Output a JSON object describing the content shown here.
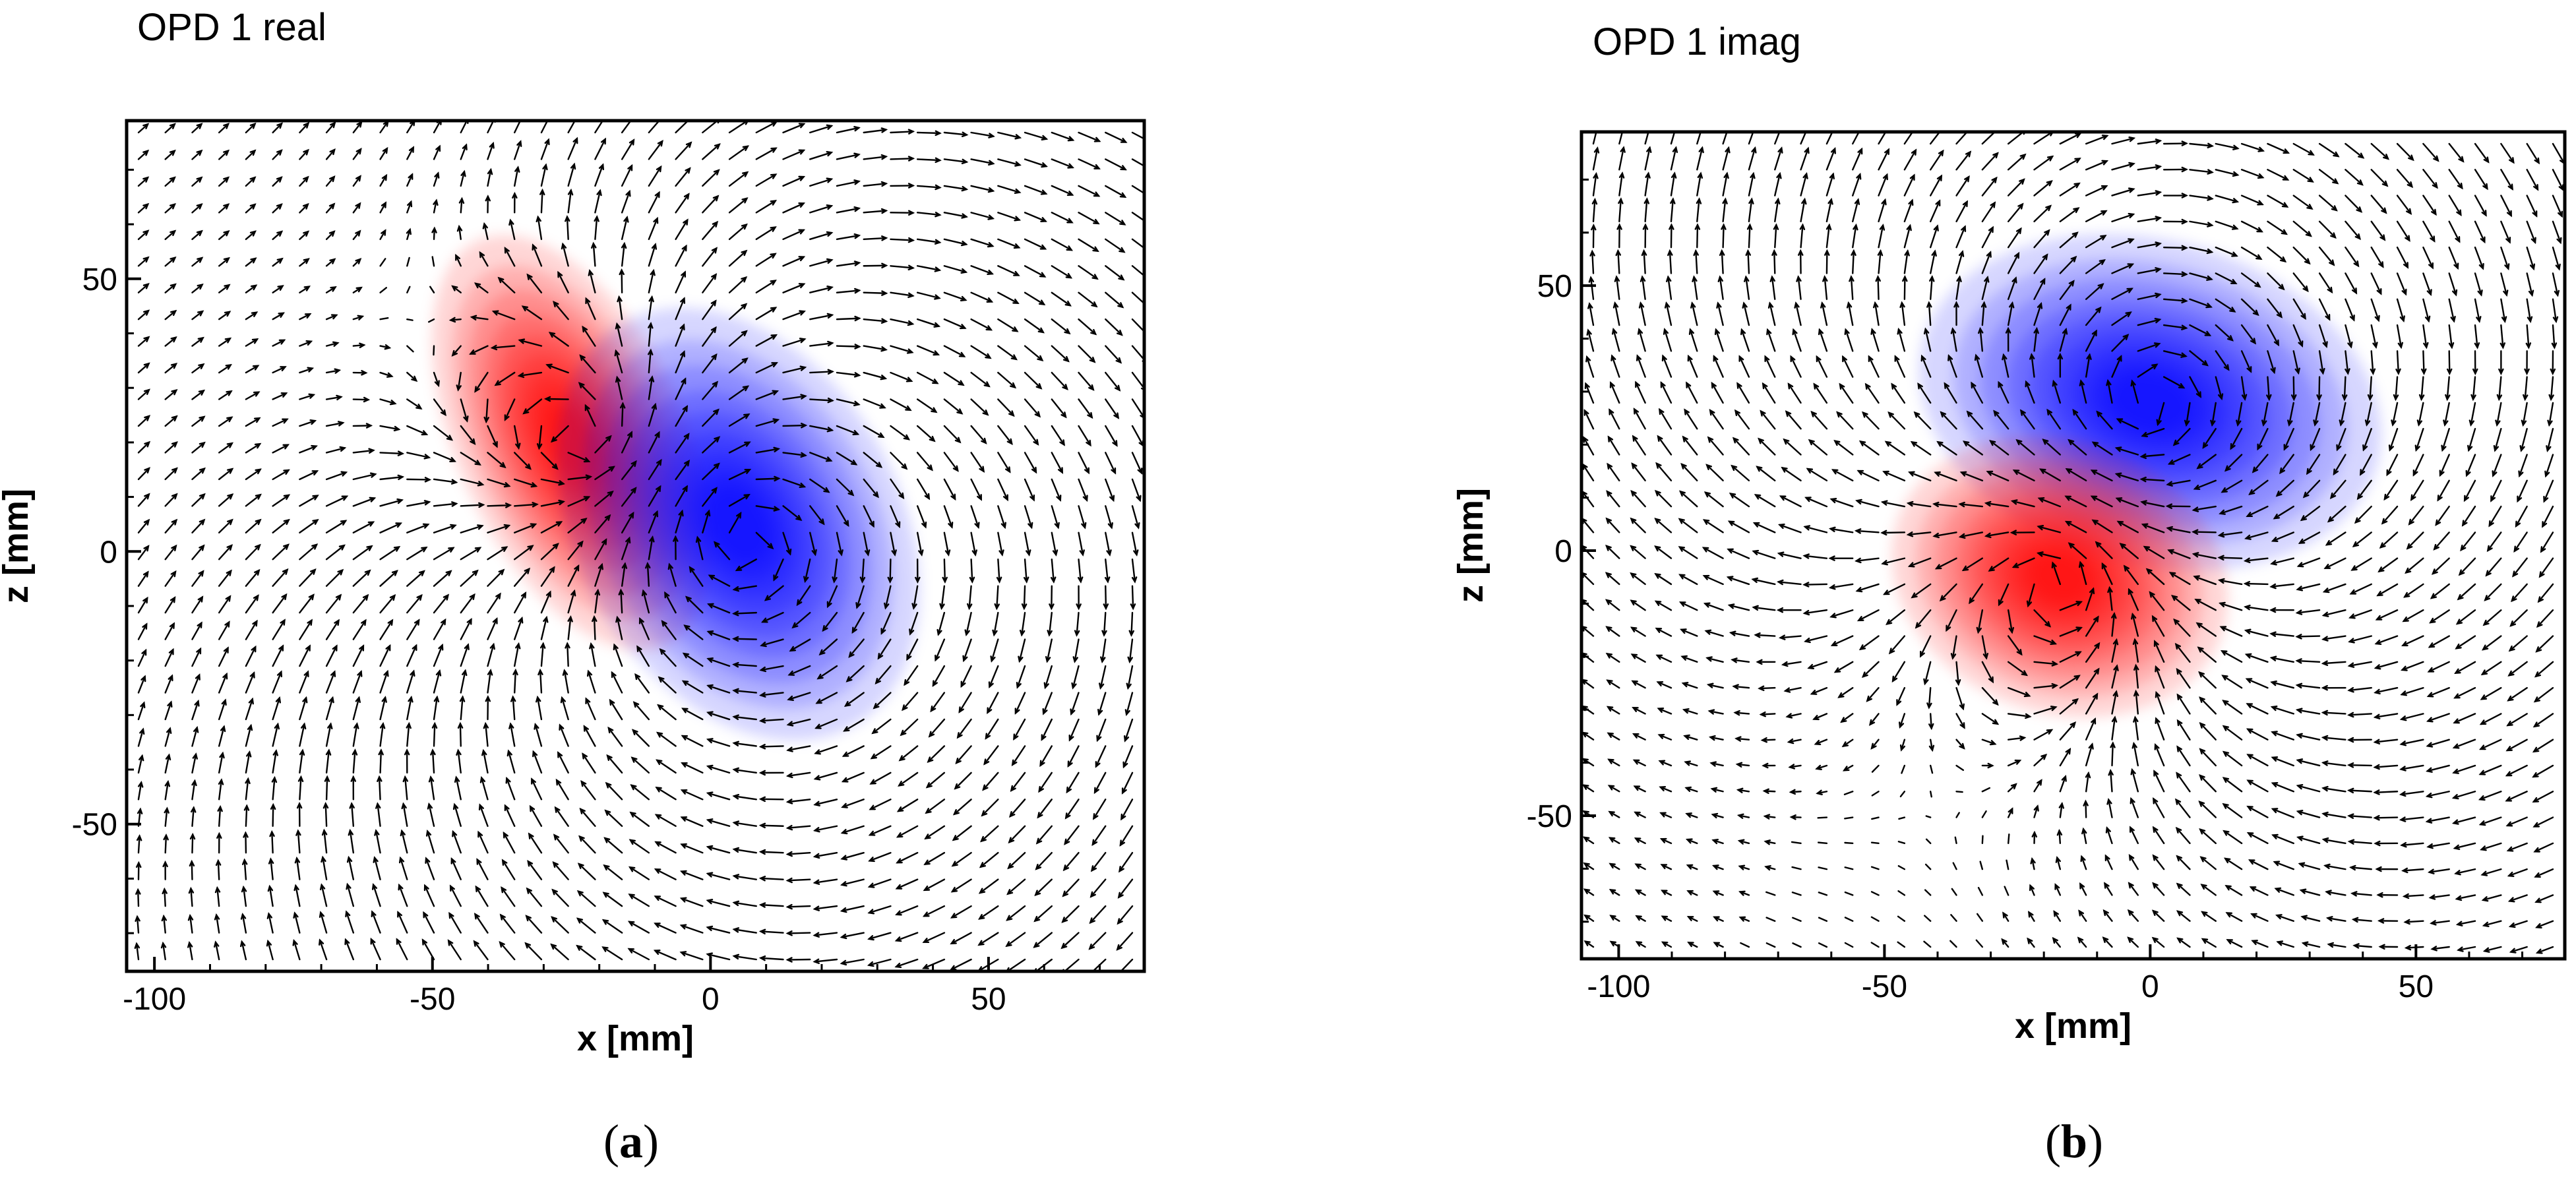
{
  "chart_data": [
    {
      "type": "heatmap",
      "title": "OPD 1 real",
      "caption_letter": "a",
      "xlabel": "x [mm]",
      "ylabel": "z [mm]",
      "xlim": [
        -105,
        78
      ],
      "ylim": [
        -77,
        79
      ],
      "x_ticks": [
        -100,
        -50,
        0,
        50
      ],
      "y_ticks": [
        -50,
        0,
        50
      ],
      "grid": false,
      "overlay": "vector-field",
      "colors": {
        "positive": "#ff0000",
        "negative": "#0000ff",
        "background": "#ffffff"
      },
      "blobs": [
        {
          "sign": "positive",
          "center_x": -25,
          "center_z": 20,
          "extent_x": 12,
          "extent_z": 24,
          "rotation_deg": -25
        },
        {
          "sign": "negative",
          "center_x": 5,
          "center_z": 5,
          "extent_x": 17,
          "extent_z": 25,
          "rotation_deg": -30
        }
      ],
      "vortex_centers": [
        {
          "x": 6,
          "z": 2
        },
        {
          "x": -22,
          "z": 20
        }
      ]
    },
    {
      "type": "heatmap",
      "title": "OPD 1 imag",
      "caption_letter": "b",
      "xlabel": "x [mm]",
      "ylabel": "z [mm]",
      "xlim": [
        -107,
        78
      ],
      "ylim": [
        -77,
        79
      ],
      "x_ticks": [
        -100,
        -50,
        0,
        50
      ],
      "y_ticks": [
        -50,
        0,
        50
      ],
      "grid": false,
      "overlay": "vector-field",
      "colors": {
        "positive": "#ff0000",
        "negative": "#0000ff",
        "background": "#ffffff"
      },
      "blobs": [
        {
          "sign": "negative",
          "center_x": 0,
          "center_z": 28,
          "extent_x": 26,
          "extent_z": 18,
          "rotation_deg": 15
        },
        {
          "sign": "positive",
          "center_x": -17,
          "center_z": -5,
          "extent_x": 19,
          "extent_z": 15,
          "rotation_deg": 20
        }
      ],
      "vortex_centers": [
        {
          "x": 0,
          "z": 28
        },
        {
          "x": -17,
          "z": -5
        }
      ]
    }
  ]
}
